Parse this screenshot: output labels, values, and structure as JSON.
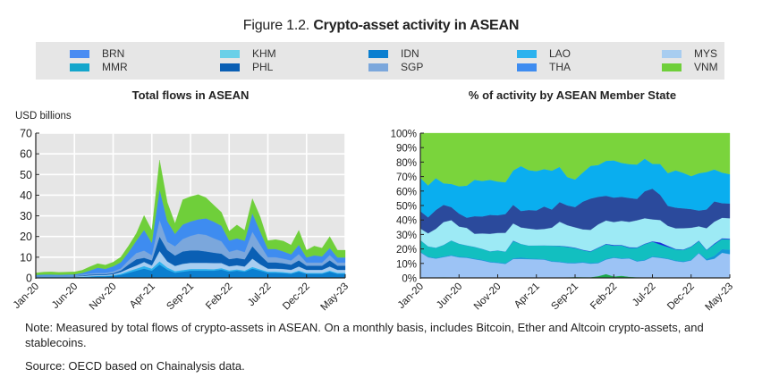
{
  "figure": {
    "title_prefix": "Figure 1.2.",
    "title_main": "Crypto-asset activity in ASEAN"
  },
  "legend": [
    {
      "label": "BRN",
      "color": "#4a8cf2"
    },
    {
      "label": "KHM",
      "color": "#6ad0e8"
    },
    {
      "label": "IDN",
      "color": "#0b7fd0"
    },
    {
      "label": "LAO",
      "color": "#2cb2ee"
    },
    {
      "label": "MYS",
      "color": "#a8cdf0"
    },
    {
      "label": "MMR",
      "color": "#14a6cc"
    },
    {
      "label": "PHL",
      "color": "#0a5fb4"
    },
    {
      "label": "SGP",
      "color": "#7ba7dc"
    },
    {
      "label": "THA",
      "color": "#3e8cf0"
    },
    {
      "label": "VNM",
      "color": "#6fcf3a"
    }
  ],
  "note": "Note: Measured by total flows of crypto-assets in ASEAN. On a monthly basis, includes Bitcoin, Ether and Altcoin crypto-assets, and stablecoins.",
  "source": "Source: OECD based on Chainalysis data.",
  "chart_data": [
    {
      "type": "area",
      "stacked": true,
      "title": "Total flows in ASEAN",
      "ylabel": "USD billions",
      "xlabel": "",
      "ylim": [
        0,
        70
      ],
      "yticks": [
        0,
        10,
        20,
        30,
        40,
        50,
        60,
        70
      ],
      "xtick_labels": [
        "Jan-20",
        "Jun-20",
        "Nov-20",
        "Apr-21",
        "Sep-21",
        "Feb-22",
        "Jul-22",
        "Dec-22",
        "May-23"
      ],
      "xtick_index": [
        0,
        5,
        10,
        15,
        20,
        25,
        30,
        35,
        40
      ],
      "grid": true,
      "x": [
        "Jan-20",
        "Feb-20",
        "Mar-20",
        "Apr-20",
        "May-20",
        "Jun-20",
        "Jul-20",
        "Aug-20",
        "Sep-20",
        "Oct-20",
        "Nov-20",
        "Dec-20",
        "Jan-21",
        "Feb-21",
        "Mar-21",
        "Apr-21",
        "May-21",
        "Jun-21",
        "Jul-21",
        "Aug-21",
        "Sep-21",
        "Oct-21",
        "Nov-21",
        "Dec-21",
        "Jan-22",
        "Feb-22",
        "Mar-22",
        "Apr-22",
        "May-22",
        "Jun-22",
        "Jul-22",
        "Aug-22",
        "Sep-22",
        "Oct-22",
        "Nov-22",
        "Dec-22",
        "Jan-23",
        "Feb-23",
        "Mar-23",
        "Apr-23",
        "May-23"
      ],
      "series": [
        {
          "name": "IDN",
          "color": "#0b7fd0",
          "values": [
            0.3,
            0.4,
            0.4,
            0.4,
            0.4,
            0.4,
            0.5,
            0.6,
            0.8,
            0.8,
            1.0,
            1.5,
            2.5,
            3.5,
            4.5,
            3.5,
            6.5,
            4.0,
            2.5,
            3.0,
            3.5,
            3.5,
            3.5,
            3.5,
            4.0,
            3.0,
            3.5,
            3.0,
            4.5,
            3.5,
            2.5,
            2.5,
            2.3,
            2.0,
            3.0,
            2.0,
            2.0,
            2.0,
            3.0,
            2.0,
            2.0
          ]
        },
        {
          "name": "LAO",
          "color": "#2cb2ee",
          "values": [
            0.1,
            0.1,
            0.1,
            0.1,
            0.1,
            0.1,
            0.1,
            0.2,
            0.2,
            0.2,
            0.3,
            0.5,
            0.8,
            1.0,
            1.2,
            1.0,
            1.5,
            1.0,
            0.8,
            0.8,
            0.8,
            0.8,
            0.8,
            0.7,
            0.7,
            0.6,
            0.6,
            0.5,
            0.8,
            0.6,
            0.5,
            0.5,
            0.5,
            0.4,
            0.5,
            0.4,
            0.4,
            0.4,
            0.5,
            0.4,
            0.4
          ]
        },
        {
          "name": "MYS",
          "color": "#a8cdf0",
          "values": [
            0.2,
            0.2,
            0.2,
            0.2,
            0.2,
            0.2,
            0.3,
            0.4,
            0.4,
            0.4,
            0.5,
            0.8,
            1.2,
            1.5,
            2.0,
            1.5,
            5.0,
            3.0,
            2.5,
            3.0,
            3.0,
            3.0,
            3.0,
            3.0,
            2.5,
            2.0,
            2.0,
            2.0,
            4.0,
            2.5,
            1.5,
            1.5,
            1.5,
            1.5,
            2.0,
            1.5,
            1.5,
            1.5,
            2.0,
            1.5,
            1.5
          ]
        },
        {
          "name": "PHL",
          "color": "#0a5fb4",
          "values": [
            0.2,
            0.2,
            0.2,
            0.2,
            0.2,
            0.2,
            0.3,
            0.4,
            0.4,
            0.4,
            0.5,
            0.8,
            2.0,
            3.0,
            2.0,
            2.5,
            7.0,
            5.5,
            5.0,
            6.0,
            6.0,
            6.0,
            5.5,
            5.0,
            4.5,
            3.5,
            3.5,
            3.5,
            6.0,
            4.5,
            3.0,
            3.0,
            2.8,
            2.5,
            3.0,
            2.0,
            2.0,
            2.0,
            3.0,
            2.0,
            2.0
          ]
        },
        {
          "name": "SGP",
          "color": "#7ba7dc",
          "values": [
            0.2,
            0.2,
            0.2,
            0.2,
            0.2,
            0.3,
            0.4,
            0.5,
            0.6,
            0.6,
            0.8,
            1.0,
            2.0,
            3.0,
            3.5,
            2.5,
            8.0,
            4.0,
            4.5,
            6.0,
            7.0,
            8.0,
            8.0,
            7.0,
            6.0,
            3.5,
            4.0,
            3.5,
            7.0,
            5.0,
            2.5,
            2.5,
            2.2,
            2.0,
            3.0,
            1.5,
            1.5,
            1.5,
            2.5,
            1.5,
            1.5
          ]
        },
        {
          "name": "THA",
          "color": "#3e8cf0",
          "values": [
            0.4,
            0.5,
            0.5,
            0.4,
            0.5,
            0.5,
            0.8,
            1.5,
            2.5,
            2.0,
            2.5,
            3.0,
            4.0,
            6.0,
            10.0,
            6.0,
            15.0,
            10.0,
            6.0,
            7.0,
            7.0,
            7.0,
            8.0,
            8.0,
            7.5,
            5.5,
            5.5,
            5.5,
            9.0,
            6.5,
            4.0,
            4.0,
            3.5,
            3.0,
            4.5,
            2.5,
            3.5,
            3.0,
            3.5,
            2.5,
            2.5
          ]
        },
        {
          "name": "VNM",
          "color": "#6fcf3a",
          "values": [
            1.0,
            1.2,
            1.3,
            1.2,
            1.2,
            1.2,
            1.3,
            1.8,
            2.0,
            1.8,
            2.0,
            2.5,
            3.0,
            3.5,
            7.0,
            6.0,
            14.0,
            9.0,
            5.0,
            12.0,
            12.0,
            12.0,
            10.0,
            8.0,
            6.5,
            4.5,
            6.5,
            5.0,
            7.0,
            7.0,
            4.0,
            4.5,
            5.0,
            4.5,
            7.0,
            3.5,
            4.5,
            4.0,
            5.5,
            3.5,
            3.5
          ]
        },
        {
          "name": "BRN",
          "color": "#4a8cf2",
          "values": [
            0,
            0,
            0,
            0,
            0,
            0,
            0,
            0,
            0,
            0,
            0,
            0,
            0,
            0,
            0,
            0,
            0,
            0,
            0,
            0,
            0,
            0,
            0,
            0,
            0,
            0,
            0,
            0,
            0,
            0,
            0,
            0,
            0,
            0,
            0,
            0,
            0,
            0,
            0,
            0,
            0
          ]
        },
        {
          "name": "KHM",
          "color": "#6ad0e8",
          "values": [
            0,
            0,
            0,
            0,
            0,
            0,
            0,
            0,
            0,
            0,
            0,
            0,
            0,
            0,
            0,
            0,
            0,
            0,
            0,
            0,
            0,
            0,
            0,
            0,
            0,
            0,
            0,
            0,
            0,
            0,
            0,
            0,
            0,
            0,
            0,
            0,
            0,
            0,
            0,
            0,
            0
          ]
        },
        {
          "name": "MMR",
          "color": "#14a6cc",
          "values": [
            0,
            0,
            0,
            0,
            0,
            0,
            0,
            0,
            0,
            0,
            0,
            0,
            0,
            0,
            0,
            0,
            0,
            0,
            0,
            0,
            0,
            0,
            0,
            0,
            0,
            0,
            0,
            0,
            0,
            0,
            0,
            0,
            0,
            0,
            0,
            0,
            0,
            0,
            0,
            0,
            0
          ]
        }
      ]
    },
    {
      "type": "area",
      "stacked": true,
      "percent": true,
      "title": "% of activity by ASEAN Member State",
      "xlabel": "",
      "ylabel": "",
      "ylim": [
        0,
        100
      ],
      "yticks": [
        0,
        10,
        20,
        30,
        40,
        50,
        60,
        70,
        80,
        90,
        100
      ],
      "ytick_labels": [
        "0%",
        "10%",
        "20%",
        "30%",
        "40%",
        "50%",
        "60%",
        "70%",
        "80%",
        "90%",
        "100%"
      ],
      "xtick_labels": [
        "Jan-20",
        "Jun-20",
        "Nov-20",
        "Apr-21",
        "Sep-21",
        "Feb-22",
        "Jul-22",
        "Dec-22",
        "May-23"
      ],
      "xtick_index": [
        0,
        5,
        10,
        15,
        20,
        25,
        30,
        35,
        40
      ],
      "grid": false,
      "x": [
        "Jan-20",
        "Feb-20",
        "Mar-20",
        "Apr-20",
        "May-20",
        "Jun-20",
        "Jul-20",
        "Aug-20",
        "Sep-20",
        "Oct-20",
        "Nov-20",
        "Dec-20",
        "Jan-21",
        "Feb-21",
        "Mar-21",
        "Apr-21",
        "May-21",
        "Jun-21",
        "Jul-21",
        "Aug-21",
        "Sep-21",
        "Oct-21",
        "Nov-21",
        "Dec-21",
        "Jan-22",
        "Feb-22",
        "Mar-22",
        "Apr-22",
        "May-22",
        "Jun-22",
        "Jul-22",
        "Aug-22",
        "Sep-22",
        "Oct-22",
        "Nov-22",
        "Dec-22",
        "Jan-23",
        "Feb-23",
        "Mar-23",
        "Apr-23",
        "May-23"
      ],
      "series": [
        {
          "name": "BRN",
          "color": "#19a84a",
          "values": [
            0.2,
            0.2,
            0.3,
            0.5,
            0.3,
            0.3,
            0.3,
            0.3,
            0.3,
            0.2,
            0.2,
            0.2,
            0.2,
            0.2,
            0.2,
            0.2,
            0.2,
            0.2,
            0.2,
            0.4,
            0.6,
            0.5,
            0.5,
            1.2,
            2.6,
            1.0,
            1.5,
            0.8,
            0.5,
            0.3,
            0.3,
            0.3,
            0.2,
            0.2,
            0.2,
            0.2,
            0.2,
            0.2,
            0.2,
            0.2,
            0.2
          ]
        },
        {
          "name": "MYS",
          "color": "#9cc3f5",
          "values": [
            17.5,
            14,
            13,
            14,
            15,
            14,
            13.5,
            12.5,
            11,
            10.5,
            10,
            9.5,
            13,
            12.5,
            13,
            12.5,
            12,
            11.5,
            11,
            10,
            9.5,
            10,
            9.5,
            9,
            10,
            13,
            12,
            13,
            11,
            12,
            14,
            14,
            13,
            12,
            11,
            12,
            17,
            12,
            13,
            17,
            16
          ]
        },
        {
          "name": "MMR",
          "color": "#1596d8",
          "values": [
            0.5,
            0.5,
            0.5,
            0.5,
            0.5,
            0.5,
            0.5,
            0.5,
            0.5,
            0.5,
            0.5,
            0.5,
            0.5,
            1,
            0.5,
            0.5,
            0.5,
            0.5,
            0.5,
            0.5,
            0.5,
            0.5,
            0.5,
            0.5,
            0.5,
            0.5,
            0.5,
            0.5,
            0.5,
            0.5,
            0.5,
            0.5,
            0.5,
            0.5,
            0.5,
            0.5,
            0.5,
            1,
            2,
            2.5,
            3
          ]
        },
        {
          "name": "KHM",
          "color": "#12bfc0",
          "values": [
            8,
            7,
            7,
            8,
            10,
            9,
            8,
            8,
            7,
            7,
            8,
            8,
            12,
            9,
            9,
            9,
            9,
            11,
            11,
            11,
            10,
            8,
            8,
            10,
            10,
            8,
            9,
            7,
            9,
            11,
            10,
            9,
            8,
            8,
            8,
            9,
            8,
            6,
            8,
            7,
            7
          ]
        },
        {
          "name": "IDN",
          "color": "#1a2bdc",
          "values": [
            0,
            0,
            0,
            0,
            0,
            0,
            0,
            0,
            0,
            0,
            0,
            0,
            0.3,
            0,
            0,
            0,
            0,
            0,
            0.2,
            0.3,
            0.3,
            0.3,
            0.3,
            0.3,
            0.3,
            0.5,
            0.3,
            0.5,
            0.3,
            0.3,
            0.3,
            1.5,
            0.8,
            0.3,
            0.3,
            0.3,
            0.3,
            0.3,
            0.5,
            0.5,
            0.5
          ]
        },
        {
          "name": "LAO",
          "color": "#9deaf5",
          "values": [
            8,
            9,
            13,
            16,
            14,
            12,
            12,
            9,
            10,
            12,
            12,
            13,
            12,
            11,
            12,
            11,
            11,
            13,
            17,
            15,
            14,
            14,
            15,
            16,
            16,
            16,
            17,
            18,
            19,
            18,
            15,
            16,
            14,
            15,
            15,
            13,
            10,
            15,
            15,
            14,
            14
          ]
        },
        {
          "name": "PHL",
          "color": "#2b4a9c",
          "values": [
            12,
            11,
            13,
            12,
            9,
            9,
            7,
            12,
            11,
            13,
            12,
            13,
            13,
            11,
            13,
            13,
            15,
            13,
            14,
            14,
            14,
            19,
            22,
            19,
            17,
            17,
            17,
            17,
            15,
            19,
            21,
            18,
            14,
            15,
            14,
            13,
            11,
            13,
            14,
            10,
            10
          ]
        },
        {
          "name": "THA",
          "color": "#0aaeef",
          "values": [
            23,
            22,
            22,
            15,
            16,
            19,
            22,
            25,
            23,
            24,
            23,
            22,
            24,
            30,
            28,
            27,
            25,
            28,
            25,
            20,
            19,
            20,
            23,
            22,
            24,
            26,
            24,
            24,
            24,
            23,
            17,
            22,
            23,
            27,
            25,
            23,
            26,
            26,
            22,
            21,
            20
          ]
        },
        {
          "name": "VNM",
          "color": "#7ad43c",
          "values": [
            31,
            36,
            31,
            35,
            35,
            37,
            36,
            32,
            31,
            32,
            33,
            34,
            26,
            22,
            26,
            26,
            24,
            27,
            24,
            31,
            32,
            27,
            23,
            22,
            19,
            19,
            21,
            22,
            22,
            18,
            21,
            22,
            28,
            27,
            28,
            30,
            28,
            27,
            25,
            27,
            28
          ]
        },
        {
          "name": "SGP",
          "color": "#7ba7dc",
          "values": [
            0,
            0,
            0,
            0,
            0,
            0,
            0,
            0,
            0,
            0,
            0,
            0,
            0,
            0,
            0,
            0,
            0,
            0,
            0,
            0,
            0,
            0,
            0,
            0,
            0,
            0,
            0,
            0,
            0,
            0,
            0,
            0,
            0,
            0,
            0,
            0,
            0,
            0,
            0,
            0,
            0
          ]
        }
      ]
    }
  ],
  "charts": {
    "left": {
      "title": "Total flows in ASEAN",
      "unit": "USD billions"
    },
    "right": {
      "title": "% of activity by ASEAN Member State"
    }
  }
}
